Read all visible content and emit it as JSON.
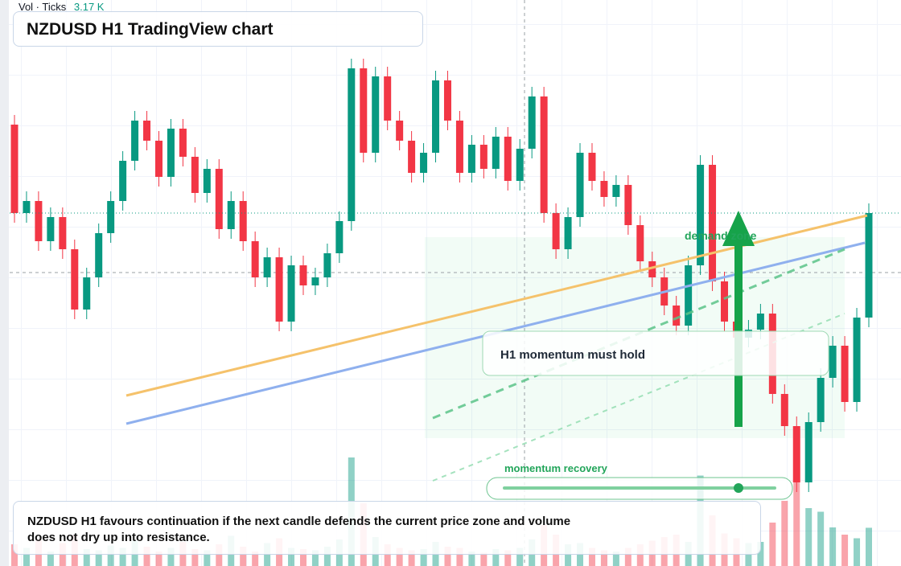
{
  "header": {
    "volume_title": "Vol · Ticks",
    "volume_readout": "3.17 K",
    "title": "NZDUSD H1 TradingView chart"
  },
  "chart_data": {
    "type": "candlestick",
    "ylim": [
      0.58896,
      0.596
    ],
    "up_color": "#089981",
    "down_color": "#f23645",
    "open": [
      0.59445,
      0.59335,
      0.5935,
      0.593,
      0.5933,
      0.5929,
      0.59215,
      0.59255,
      0.5931,
      0.5935,
      0.594,
      0.5945,
      0.59425,
      0.5938,
      0.5944,
      0.59405,
      0.5936,
      0.5939,
      0.59315,
      0.5935,
      0.593,
      0.59255,
      0.5928,
      0.592,
      0.5927,
      0.59245,
      0.59255,
      0.59285,
      0.59325,
      0.59515,
      0.5941,
      0.59505,
      0.5945,
      0.59425,
      0.59385,
      0.5941,
      0.595,
      0.5945,
      0.59385,
      0.5942,
      0.5939,
      0.5943,
      0.59375,
      0.59415,
      0.5948,
      0.59335,
      0.5929,
      0.5933,
      0.5941,
      0.59375,
      0.59355,
      0.5937,
      0.5932,
      0.59275,
      0.59255,
      0.5922,
      0.59195,
      0.5927,
      0.59395,
      0.5925,
      0.592,
      0.5918,
      0.5919,
      0.5921,
      0.5911,
      0.5907,
      0.59,
      0.59075,
      0.5913,
      0.5917,
      0.591,
      0.59205
    ],
    "high": [
      0.59457,
      0.59362,
      0.59362,
      0.59342,
      0.59342,
      0.59302,
      0.59267,
      0.59322,
      0.59362,
      0.59412,
      0.59462,
      0.59462,
      0.59437,
      0.59452,
      0.59452,
      0.59417,
      0.59402,
      0.59402,
      0.59362,
      0.59362,
      0.59312,
      0.59292,
      0.59292,
      0.59282,
      0.59282,
      0.59267,
      0.59297,
      0.59337,
      0.59527,
      0.59527,
      0.59517,
      0.59517,
      0.59462,
      0.59437,
      0.59422,
      0.59512,
      0.59512,
      0.59462,
      0.59432,
      0.59432,
      0.59442,
      0.59442,
      0.59427,
      0.59492,
      0.59492,
      0.59347,
      0.59342,
      0.59422,
      0.59422,
      0.59387,
      0.59382,
      0.59382,
      0.59332,
      0.59287,
      0.59267,
      0.59232,
      0.59282,
      0.59407,
      0.59407,
      0.59262,
      0.59212,
      0.59202,
      0.59222,
      0.59222,
      0.59122,
      0.59082,
      0.59087,
      0.59142,
      0.59182,
      0.59182,
      0.59217,
      0.59347
    ],
    "low": [
      0.59323,
      0.59323,
      0.59288,
      0.59288,
      0.59278,
      0.59203,
      0.59203,
      0.59243,
      0.59298,
      0.59338,
      0.59388,
      0.59413,
      0.59368,
      0.59368,
      0.59393,
      0.59348,
      0.59348,
      0.59303,
      0.59303,
      0.59288,
      0.59243,
      0.59243,
      0.59188,
      0.59188,
      0.59233,
      0.59233,
      0.59243,
      0.59273,
      0.59313,
      0.59398,
      0.59398,
      0.59438,
      0.59413,
      0.59373,
      0.59373,
      0.59398,
      0.59438,
      0.59373,
      0.59373,
      0.59378,
      0.59378,
      0.59363,
      0.59363,
      0.59403,
      0.59323,
      0.59278,
      0.59278,
      0.59318,
      0.59363,
      0.59343,
      0.59343,
      0.59308,
      0.59263,
      0.59243,
      0.59208,
      0.59183,
      0.59183,
      0.59258,
      0.59238,
      0.59188,
      0.59168,
      0.59168,
      0.59178,
      0.59098,
      0.59058,
      0.58988,
      0.58988,
      0.59063,
      0.59118,
      0.59088,
      0.59088,
      0.59193
    ],
    "close": [
      0.59335,
      0.5935,
      0.593,
      0.5933,
      0.5929,
      0.59215,
      0.59255,
      0.5931,
      0.5935,
      0.594,
      0.5945,
      0.59425,
      0.5938,
      0.5944,
      0.59405,
      0.5936,
      0.5939,
      0.59315,
      0.5935,
      0.593,
      0.59255,
      0.5928,
      0.592,
      0.5927,
      0.59245,
      0.59255,
      0.59285,
      0.59325,
      0.59515,
      0.5941,
      0.59505,
      0.5945,
      0.59425,
      0.59385,
      0.5941,
      0.595,
      0.5945,
      0.59385,
      0.5942,
      0.5939,
      0.5943,
      0.59375,
      0.59415,
      0.5948,
      0.59335,
      0.5929,
      0.5933,
      0.5941,
      0.59375,
      0.59355,
      0.5937,
      0.5932,
      0.59275,
      0.59255,
      0.5922,
      0.59195,
      0.5927,
      0.59395,
      0.5925,
      0.592,
      0.5918,
      0.5919,
      0.5921,
      0.5911,
      0.5907,
      0.59,
      0.59075,
      0.5913,
      0.5917,
      0.591,
      0.59205,
      0.59335
    ],
    "volume": {
      "ylim": [
        0,
        12000
      ],
      "values": [
        1800,
        1500,
        2200,
        1200,
        1900,
        2600,
        1400,
        1300,
        1700,
        1500,
        2100,
        1600,
        1200,
        1500,
        2000,
        1400,
        1300,
        1800,
        2500,
        1600,
        1200,
        1900,
        2300,
        1500,
        1400,
        1300,
        1600,
        2200,
        9000,
        5200,
        2400,
        1800,
        1500,
        1300,
        1400,
        2000,
        1600,
        1500,
        1200,
        1100,
        1400,
        1300,
        1500,
        2200,
        3400,
        2600,
        1800,
        1900,
        1500,
        1300,
        1200,
        1500,
        1800,
        2100,
        2400,
        2600,
        2000,
        7500,
        4200,
        2700,
        2300,
        1900,
        2000,
        3600,
        5400,
        7000,
        4800,
        4500,
        3200,
        2600,
        2300,
        3170
      ]
    }
  },
  "annotations": {
    "zone": "demand zone",
    "callout": "H1 momentum must hold",
    "slider": "momentum recovery",
    "note": "NZDUSD H1 favours continuation if the next candle defends the current price zone and volume does not dry up into resistance."
  }
}
